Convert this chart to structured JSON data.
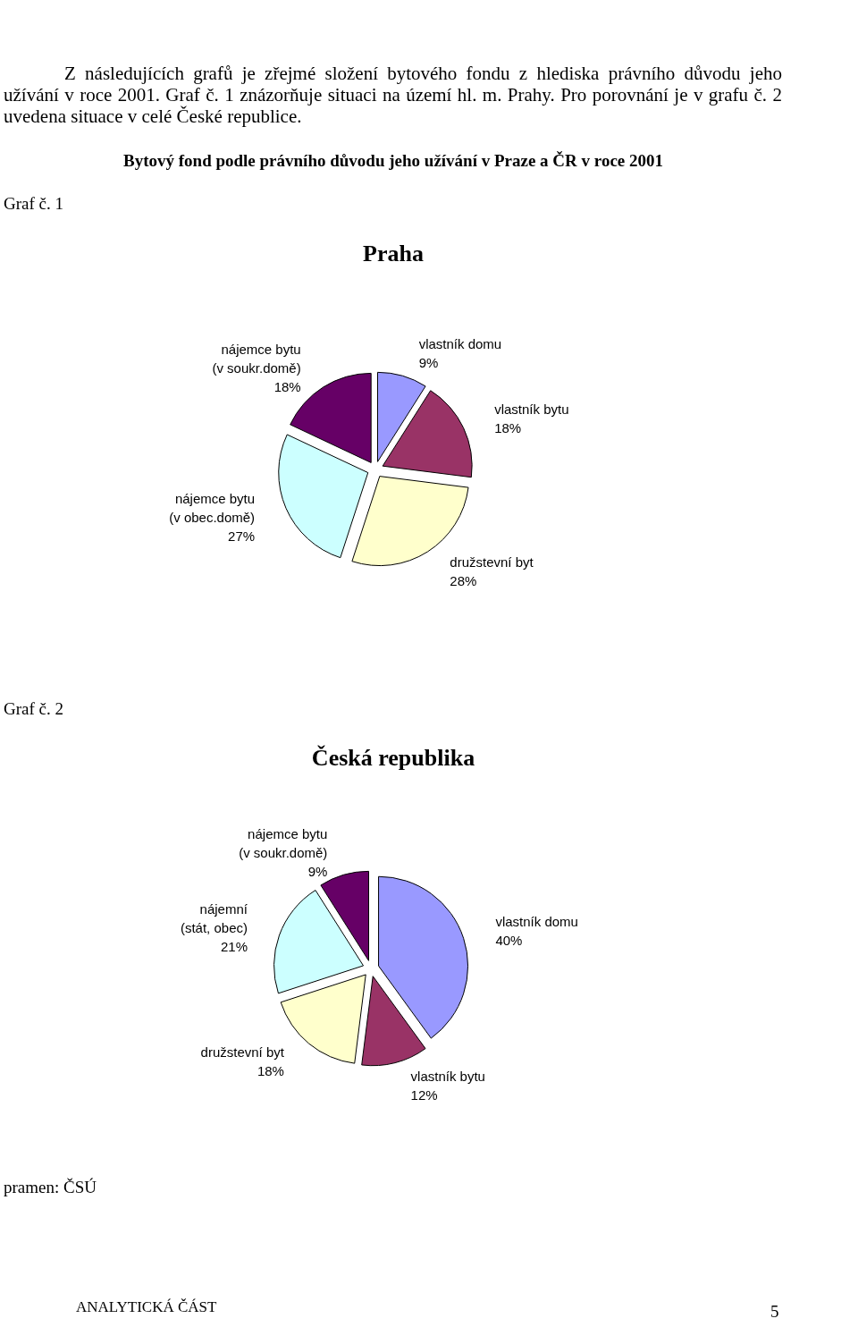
{
  "chart_data": [
    {
      "type": "pie",
      "title": "Praha",
      "categories": [
        "vlastník domu",
        "vlastník bytu",
        "družstevní byt",
        "nájemce bytu (v obec.domě)",
        "nájemce bytu (v soukr.domě)"
      ],
      "values": [
        9,
        18,
        28,
        27,
        18
      ],
      "value_labels": [
        "9%",
        "18%",
        "28%",
        "27%",
        "18%"
      ],
      "colors": [
        "#9999ff",
        "#993366",
        "#ffffcc",
        "#ccffff",
        "#660066"
      ],
      "annotations": [
        "Z následujících grafů je zřejmé složení bytového fondu z hlediska právního důvodu jeho užívání v roce 2001. Graf č. 1 znázorňuje situaci na území hl. m. Prahy. Pro porovnání je v grafu č. 2 uvedena situace v celé České republice.",
        "Bytový fond podle právního důvodu jeho užívání v Praze a ČR v roce 2001",
        "Graf č. 1"
      ]
    },
    {
      "type": "pie",
      "title": "Česká republika",
      "categories": [
        "vlastník domu",
        "vlastník bytu",
        "družstevní byt",
        "nájemní (stát, obec)",
        "nájemce bytu (v soukr.domě)"
      ],
      "values": [
        40,
        12,
        18,
        21,
        9
      ],
      "value_labels": [
        "40%",
        "12%",
        "18%",
        "21%",
        "9%"
      ],
      "colors": [
        "#9999ff",
        "#993366",
        "#ffffcc",
        "#ccffff",
        "#660066"
      ],
      "annotations": [
        "Graf č. 2",
        "pramen: ČSÚ",
        "ANALYTICKÁ ČÁST",
        "5"
      ]
    }
  ]
}
